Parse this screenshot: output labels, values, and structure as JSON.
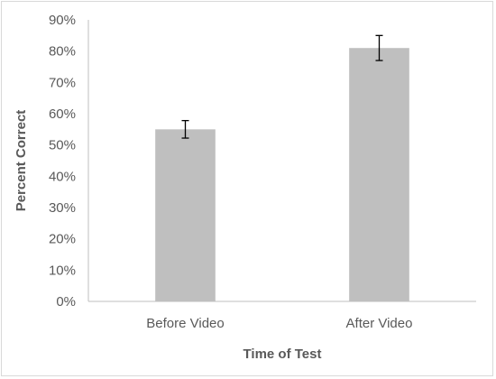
{
  "chart_data": {
    "type": "bar",
    "categories": [
      "Before Video",
      "After Video"
    ],
    "values": [
      0.55,
      0.81
    ],
    "error_bars": [
      {
        "low": 0.522,
        "high": 0.578
      },
      {
        "low": 0.77,
        "high": 0.85
      }
    ],
    "title": "",
    "xlabel": "Time of Test",
    "ylabel": "Percent Correct",
    "ylim": [
      0,
      0.9
    ],
    "y_ticks": [
      0,
      0.1,
      0.2,
      0.3,
      0.4,
      0.5,
      0.6,
      0.7,
      0.8,
      0.9
    ],
    "y_tick_labels": [
      "0%",
      "10%",
      "20%",
      "30%",
      "40%",
      "50%",
      "60%",
      "70%",
      "80%",
      "90%"
    ],
    "bar_color": "#bfbfbf",
    "error_bar_color": "#000000",
    "axis_color": "#bfbfbf",
    "grid": false,
    "legend": "none"
  }
}
